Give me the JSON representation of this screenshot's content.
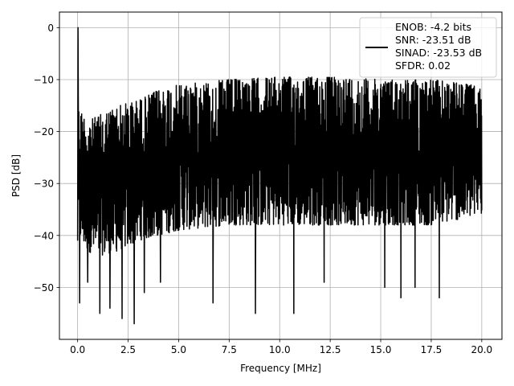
{
  "chart_data": {
    "type": "line",
    "title": "",
    "xlabel": "Frequency [MHz]",
    "ylabel": "PSD [dB]",
    "xlim": [
      -0.9,
      21.0
    ],
    "ylim": [
      -60,
      3
    ],
    "xticks": [
      0.0,
      2.5,
      5.0,
      7.5,
      10.0,
      12.5,
      15.0,
      17.5,
      20.0
    ],
    "xtick_labels": [
      "0.0",
      "2.5",
      "5.0",
      "7.5",
      "10.0",
      "12.5",
      "15.0",
      "17.5",
      "20.0"
    ],
    "yticks": [
      0,
      -10,
      -20,
      -30,
      -40,
      -50
    ],
    "ytick_labels": [
      "0",
      "−10",
      "−20",
      "−30",
      "−40",
      "−50"
    ],
    "grid": true,
    "legend_position": "top-right",
    "series": [
      {
        "name": "ENOB: -4.2 bits\nSNR: -23.51 dB\nSINAD: -23.53 dB\nSFDR: 0.02",
        "legend_lines": [
          "ENOB: -4.2 bits",
          "SNR: -23.51 dB",
          "SINAD: -23.53 dB",
          "SFDR: 0.02"
        ],
        "color": "#000000",
        "x_range": [
          0.0,
          20.0
        ],
        "n_points": 2000,
        "peak": {
          "x": 0.02,
          "y": 0.0
        },
        "upper_envelope": {
          "x": [
            0.0,
            0.5,
            1.0,
            2.0,
            3.0,
            4.0,
            5.0,
            7.5,
            10.0,
            12.5,
            15.0,
            17.5,
            19.5,
            20.0
          ],
          "y": [
            -15,
            -18,
            -17,
            -15,
            -14,
            -12,
            -11,
            -10,
            -9.5,
            -9.5,
            -10,
            -10,
            -11,
            -12
          ]
        },
        "lower_envelope": {
          "x": [
            0.0,
            0.5,
            1.0,
            2.0,
            3.0,
            5.0,
            7.5,
            10.0,
            12.5,
            15.0,
            17.5,
            20.0
          ],
          "y": [
            -40,
            -43,
            -44,
            -43,
            -41,
            -39,
            -38,
            -38,
            -38,
            -38,
            -38,
            -36
          ]
        },
        "deep_dips": [
          {
            "x": 0.1,
            "y": -53
          },
          {
            "x": 0.5,
            "y": -49
          },
          {
            "x": 1.1,
            "y": -55
          },
          {
            "x": 1.6,
            "y": -54
          },
          {
            "x": 2.2,
            "y": -56
          },
          {
            "x": 2.8,
            "y": -57
          },
          {
            "x": 3.3,
            "y": -51
          },
          {
            "x": 4.1,
            "y": -49
          },
          {
            "x": 6.7,
            "y": -53
          },
          {
            "x": 8.8,
            "y": -55
          },
          {
            "x": 10.7,
            "y": -55
          },
          {
            "x": 12.2,
            "y": -49
          },
          {
            "x": 15.2,
            "y": -50
          },
          {
            "x": 16.0,
            "y": -52
          },
          {
            "x": 16.7,
            "y": -50
          },
          {
            "x": 17.9,
            "y": -52
          }
        ]
      }
    ]
  }
}
